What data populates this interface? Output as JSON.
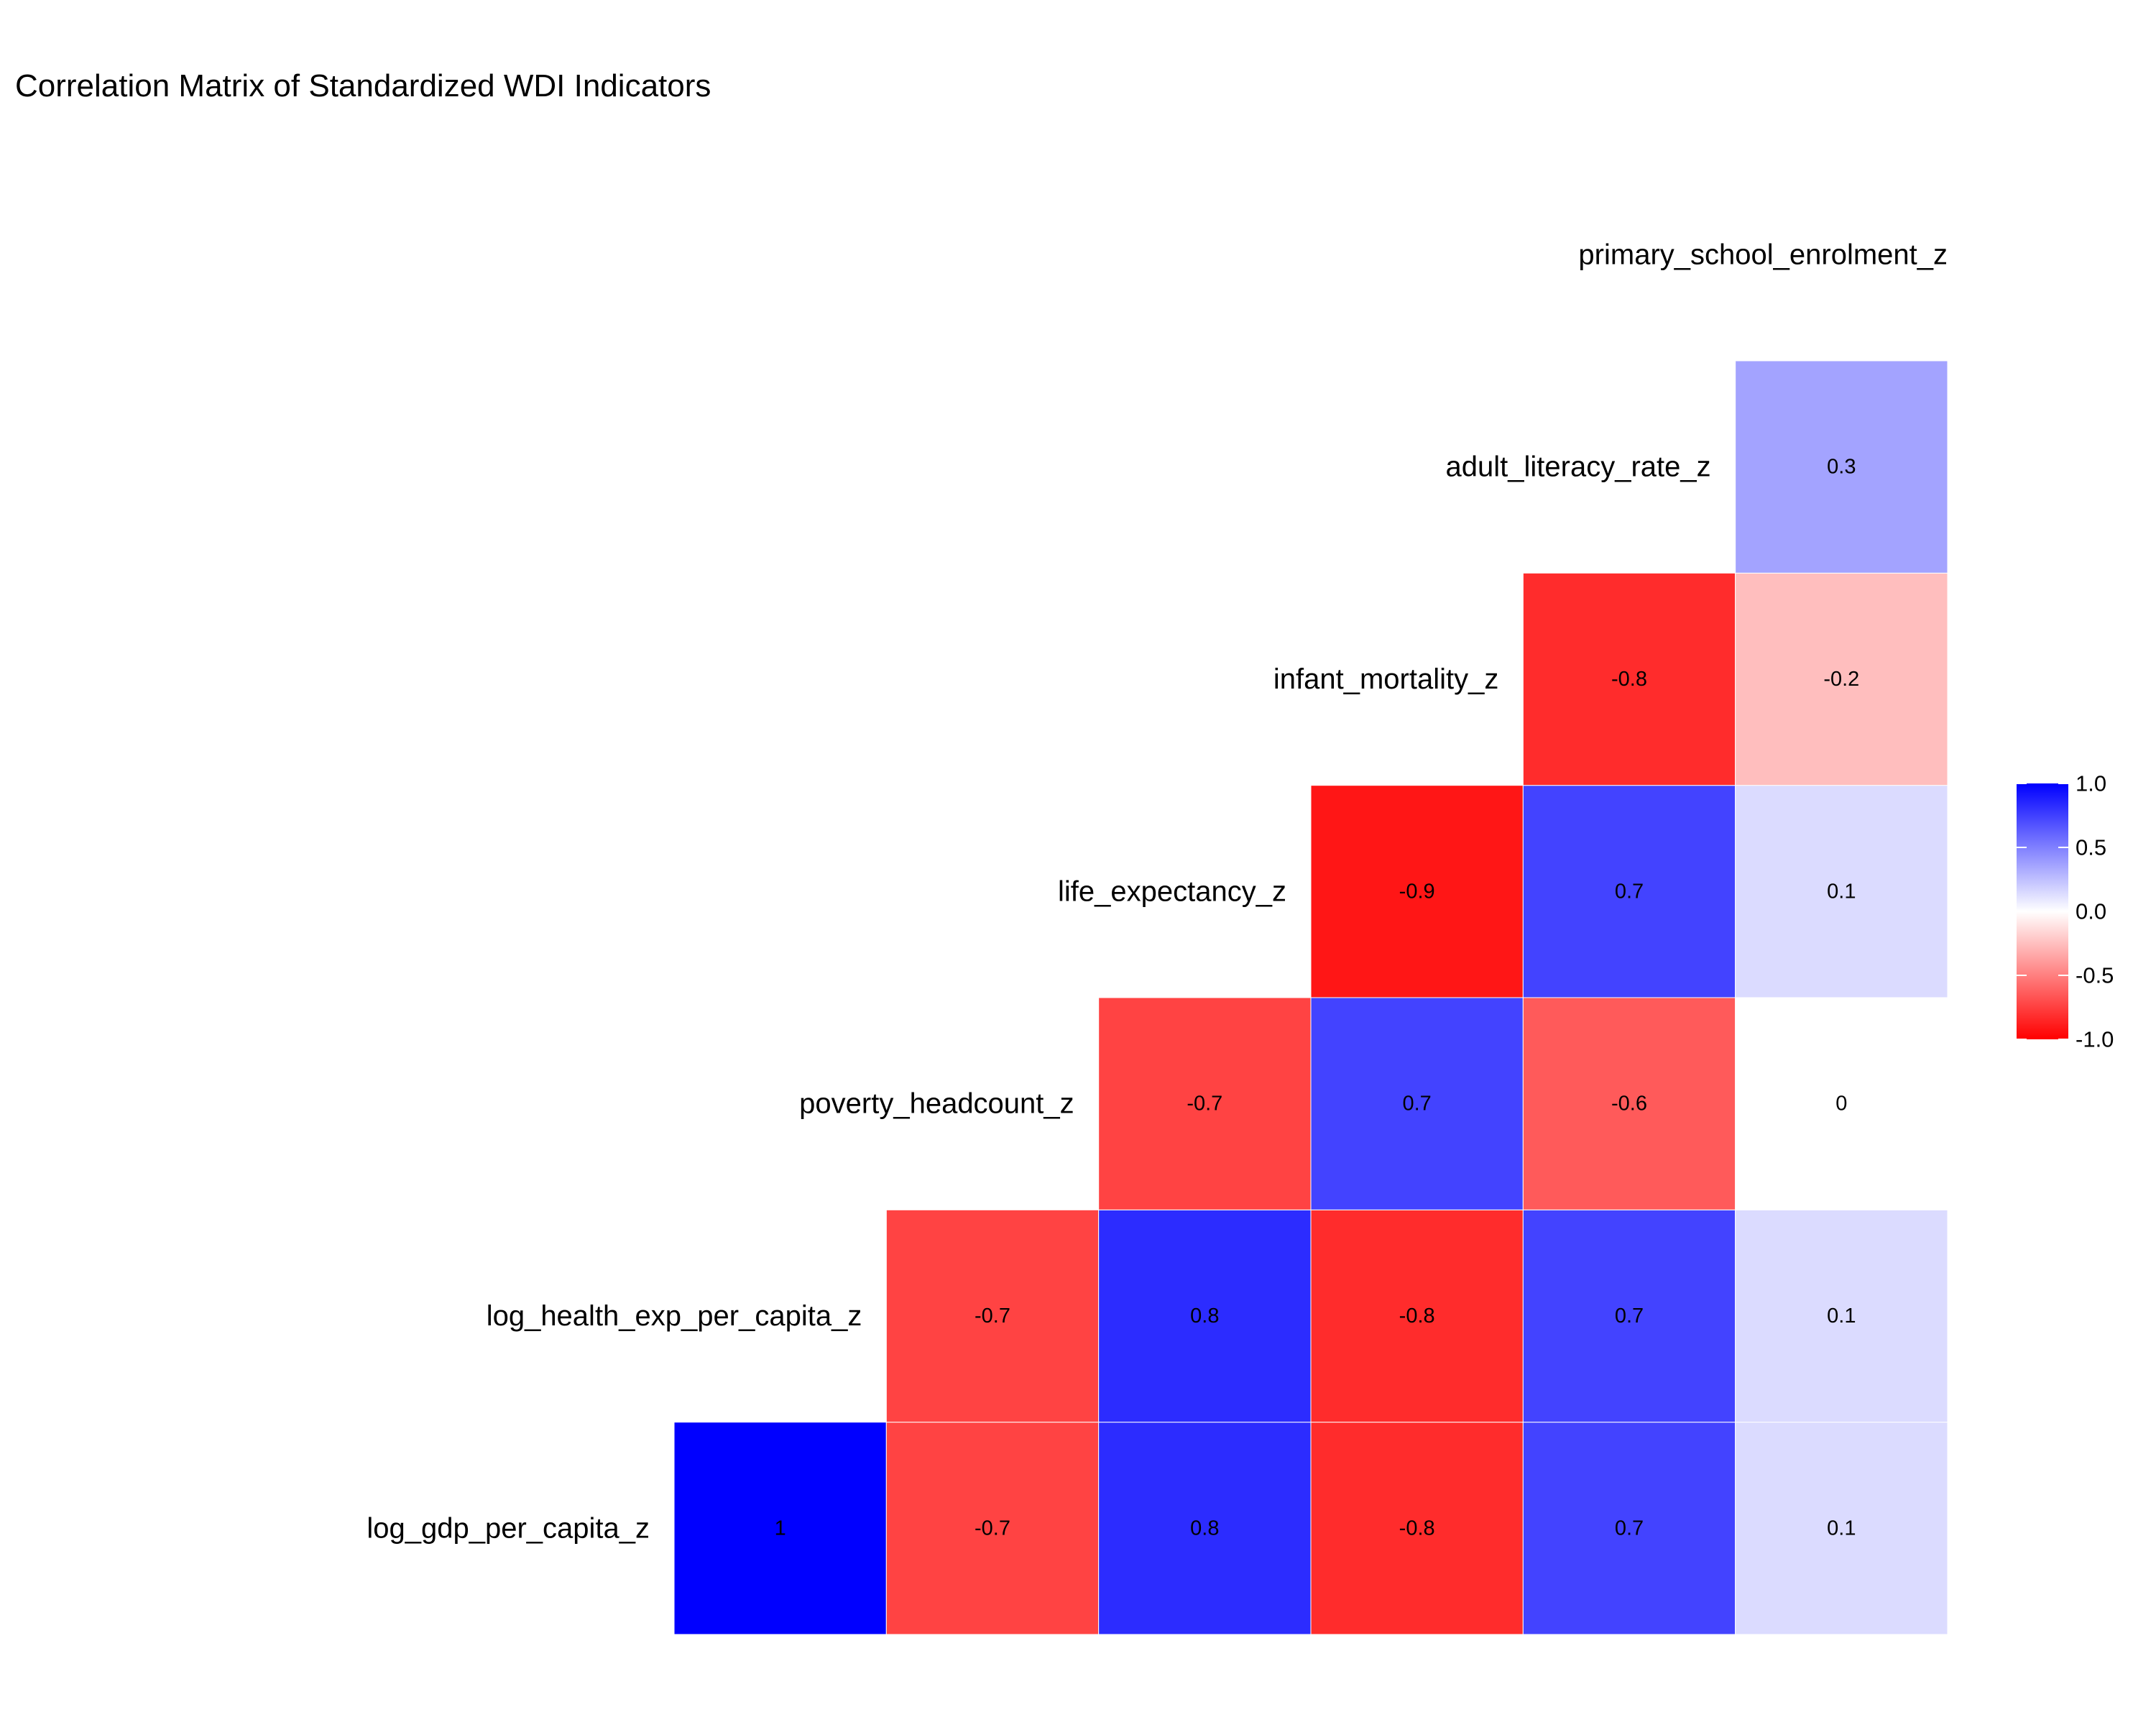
{
  "chart_data": {
    "type": "heatmap",
    "title": "Correlation Matrix of Standardized WDI Indicators",
    "xlabel": "",
    "ylabel": "",
    "columns": [
      "log_gdp_per_capita_z",
      "log_health_exp_per_capita_z",
      "poverty_headcount_z",
      "life_expectancy_z",
      "infant_mortality_z",
      "adult_literacy_rate_z"
    ],
    "rows": [
      {
        "label": "log_gdp_per_capita_z",
        "cells": [
          {
            "column": "log_gdp_per_capita_z",
            "value": 1,
            "label": "1"
          },
          {
            "column": "log_health_exp_per_capita_z",
            "value": -0.7,
            "label": "-0.7"
          },
          {
            "column": "poverty_headcount_z",
            "value": 0.8,
            "label": "0.8"
          },
          {
            "column": "life_expectancy_z",
            "value": -0.8,
            "label": "-0.8"
          },
          {
            "column": "infant_mortality_z",
            "value": 0.7,
            "label": "0.7"
          },
          {
            "column": "adult_literacy_rate_z",
            "value": 0.1,
            "label": "0.1"
          }
        ]
      },
      {
        "label": "log_health_exp_per_capita_z",
        "cells": [
          {
            "column": "log_health_exp_per_capita_z",
            "value": -0.7,
            "label": "-0.7"
          },
          {
            "column": "poverty_headcount_z",
            "value": 0.8,
            "label": "0.8"
          },
          {
            "column": "life_expectancy_z",
            "value": -0.8,
            "label": "-0.8"
          },
          {
            "column": "infant_mortality_z",
            "value": 0.7,
            "label": "0.7"
          },
          {
            "column": "adult_literacy_rate_z",
            "value": 0.1,
            "label": "0.1"
          }
        ]
      },
      {
        "label": "poverty_headcount_z",
        "cells": [
          {
            "column": "poverty_headcount_z",
            "value": -0.7,
            "label": "-0.7"
          },
          {
            "column": "life_expectancy_z",
            "value": 0.7,
            "label": "0.7"
          },
          {
            "column": "infant_mortality_z",
            "value": -0.6,
            "label": "-0.6"
          },
          {
            "column": "adult_literacy_rate_z",
            "value": 0,
            "label": "0"
          }
        ]
      },
      {
        "label": "life_expectancy_z",
        "cells": [
          {
            "column": "life_expectancy_z",
            "value": -0.9,
            "label": "-0.9"
          },
          {
            "column": "infant_mortality_z",
            "value": 0.7,
            "label": "0.7"
          },
          {
            "column": "adult_literacy_rate_z",
            "value": 0.1,
            "label": "0.1"
          }
        ]
      },
      {
        "label": "infant_mortality_z",
        "cells": [
          {
            "column": "infant_mortality_z",
            "value": -0.8,
            "label": "-0.8"
          },
          {
            "column": "adult_literacy_rate_z",
            "value": -0.2,
            "label": "-0.2"
          }
        ]
      },
      {
        "label": "adult_literacy_rate_z",
        "cells": [
          {
            "column": "adult_literacy_rate_z",
            "value": 0.3,
            "label": "0.3"
          }
        ]
      },
      {
        "label": "primary_school_enrolment_z",
        "cells": []
      }
    ],
    "color_scale": {
      "low": "#ff0000",
      "mid": "#ffffff",
      "high": "#0000ff",
      "limits": [
        -1,
        1
      ],
      "ticks": [
        1.0,
        0.5,
        0.0,
        -0.5,
        -1.0
      ],
      "tick_labels": [
        "1.0",
        "0.5",
        "0.0",
        "-0.5",
        "-1.0"
      ]
    },
    "legend_position": "right",
    "grid": false
  }
}
